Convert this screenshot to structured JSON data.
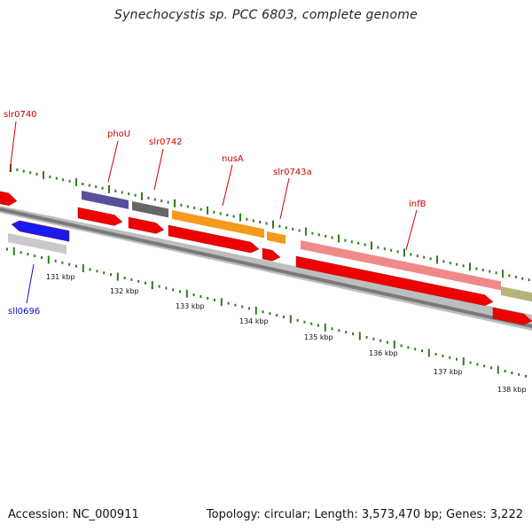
{
  "title": "Synechocystis sp. PCC 6803, complete genome",
  "footer": {
    "accession": "Accession: NC_000911",
    "info": "Topology: circular; Length: 3,573,470 bp; Genes: 3,222"
  },
  "colors": {
    "backbone": "#7a7a7a",
    "tick": "#2e7d1e",
    "cds": "#ee0000",
    "forward_label": "#cc0000",
    "reverse_label": "#1010cc"
  },
  "kbp_labels": [
    "131 kbp",
    "132 kbp",
    "133 kbp",
    "134 kbp",
    "135 kbp",
    "136 kbp",
    "137 kbp",
    "138 kbp"
  ],
  "genes": [
    {
      "name": "slr0740",
      "strand": "+",
      "color": "#ee0000"
    },
    {
      "name": "phoU",
      "strand": "+",
      "color": "#55509a"
    },
    {
      "name": "slr0742",
      "strand": "+",
      "color": "#666666"
    },
    {
      "name": "nusA",
      "strand": "+",
      "color": "#f59a1a"
    },
    {
      "name": "slr0743a",
      "strand": "+",
      "color": "#f59a1a"
    },
    {
      "name": "infB",
      "strand": "+",
      "color": "#f08a8a"
    },
    {
      "name": "sll0696",
      "strand": "-",
      "color": "#1a1aee"
    }
  ]
}
